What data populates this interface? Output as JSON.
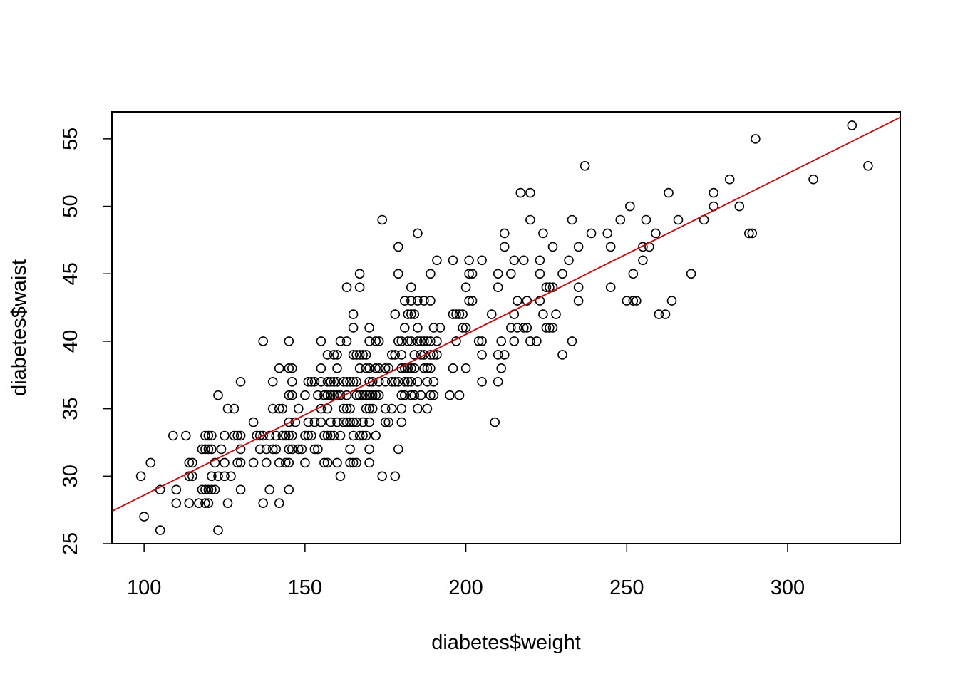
{
  "chart_data": {
    "type": "scatter",
    "title": "",
    "xlabel": "diabetes$weight",
    "ylabel": "diabetes$waist",
    "xlim": [
      90,
      335
    ],
    "ylim": [
      25,
      57
    ],
    "x_ticks": [
      100,
      150,
      200,
      250,
      300
    ],
    "y_ticks": [
      25,
      30,
      35,
      40,
      45,
      50,
      55
    ],
    "x_tick_labels": [
      "100",
      "150",
      "200",
      "250",
      "300"
    ],
    "y_tick_labels": [
      "25",
      "30",
      "35",
      "40",
      "45",
      "50",
      "55"
    ],
    "grid": false,
    "point_color": "#000000",
    "fit_line_color": "#e00000",
    "fit_line": {
      "x": [
        90,
        335
      ],
      "y": [
        27.4,
        56.6
      ]
    },
    "points": [
      [
        99,
        30
      ],
      [
        100,
        27
      ],
      [
        102,
        31
      ],
      [
        105,
        26
      ],
      [
        105,
        29
      ],
      [
        109,
        33
      ],
      [
        110,
        29
      ],
      [
        110,
        28
      ],
      [
        113,
        33
      ],
      [
        114,
        31
      ],
      [
        114,
        30
      ],
      [
        114,
        28
      ],
      [
        115,
        31
      ],
      [
        115,
        30
      ],
      [
        117,
        28
      ],
      [
        118,
        32
      ],
      [
        118,
        29
      ],
      [
        119,
        33
      ],
      [
        119,
        32
      ],
      [
        119,
        29
      ],
      [
        119,
        28
      ],
      [
        120,
        33
      ],
      [
        120,
        32
      ],
      [
        120,
        29
      ],
      [
        120,
        28
      ],
      [
        121,
        33
      ],
      [
        121,
        32
      ],
      [
        121,
        30
      ],
      [
        121,
        29
      ],
      [
        122,
        31
      ],
      [
        122,
        29
      ],
      [
        123,
        36
      ],
      [
        123,
        30
      ],
      [
        123,
        26
      ],
      [
        124,
        32
      ],
      [
        125,
        33
      ],
      [
        125,
        31
      ],
      [
        125,
        30
      ],
      [
        126,
        35
      ],
      [
        126,
        28
      ],
      [
        127,
        30
      ],
      [
        128,
        35
      ],
      [
        128,
        33
      ],
      [
        129,
        33
      ],
      [
        129,
        31
      ],
      [
        130,
        37
      ],
      [
        130,
        33
      ],
      [
        130,
        32
      ],
      [
        130,
        31
      ],
      [
        130,
        29
      ],
      [
        134,
        34
      ],
      [
        134,
        31
      ],
      [
        135,
        33
      ],
      [
        136,
        33
      ],
      [
        136,
        32
      ],
      [
        137,
        40
      ],
      [
        137,
        33
      ],
      [
        137,
        28
      ],
      [
        138,
        32
      ],
      [
        138,
        31
      ],
      [
        139,
        33
      ],
      [
        139,
        29
      ],
      [
        140,
        37
      ],
      [
        140,
        35
      ],
      [
        140,
        32
      ],
      [
        141,
        33
      ],
      [
        141,
        32
      ],
      [
        142,
        38
      ],
      [
        142,
        35
      ],
      [
        142,
        31
      ],
      [
        142,
        28
      ],
      [
        143,
        35
      ],
      [
        143,
        33
      ],
      [
        144,
        33
      ],
      [
        144,
        31
      ],
      [
        145,
        40
      ],
      [
        145,
        38
      ],
      [
        145,
        36
      ],
      [
        145,
        34
      ],
      [
        145,
        33
      ],
      [
        145,
        32
      ],
      [
        145,
        31
      ],
      [
        145,
        29
      ],
      [
        146,
        38
      ],
      [
        146,
        37
      ],
      [
        146,
        36
      ],
      [
        146,
        33
      ],
      [
        146,
        32
      ],
      [
        147,
        34
      ],
      [
        148,
        32
      ],
      [
        148,
        35
      ],
      [
        149,
        32
      ],
      [
        150,
        36
      ],
      [
        150,
        33
      ],
      [
        150,
        31
      ],
      [
        151,
        37
      ],
      [
        151,
        34
      ],
      [
        151,
        33
      ],
      [
        152,
        37
      ],
      [
        152,
        33
      ],
      [
        153,
        37
      ],
      [
        153,
        34
      ],
      [
        153,
        32
      ],
      [
        154,
        36
      ],
      [
        154,
        32
      ],
      [
        155,
        40
      ],
      [
        155,
        38
      ],
      [
        155,
        37
      ],
      [
        155,
        35
      ],
      [
        155,
        34
      ],
      [
        156,
        36
      ],
      [
        156,
        33
      ],
      [
        156,
        31
      ],
      [
        157,
        39
      ],
      [
        157,
        37
      ],
      [
        157,
        36
      ],
      [
        157,
        35
      ],
      [
        157,
        33
      ],
      [
        157,
        31
      ],
      [
        158,
        37
      ],
      [
        158,
        36
      ],
      [
        158,
        34
      ],
      [
        158,
        33
      ],
      [
        159,
        39
      ],
      [
        159,
        37
      ],
      [
        159,
        36
      ],
      [
        159,
        33
      ],
      [
        160,
        39
      ],
      [
        160,
        38
      ],
      [
        160,
        37
      ],
      [
        160,
        36
      ],
      [
        160,
        34
      ],
      [
        160,
        31
      ],
      [
        161,
        40
      ],
      [
        161,
        36
      ],
      [
        161,
        33
      ],
      [
        161,
        30
      ],
      [
        162,
        37
      ],
      [
        162,
        35
      ],
      [
        162,
        34
      ],
      [
        163,
        44
      ],
      [
        163,
        40
      ],
      [
        163,
        37
      ],
      [
        163,
        36
      ],
      [
        163,
        35
      ],
      [
        163,
        34
      ],
      [
        164,
        37
      ],
      [
        164,
        35
      ],
      [
        164,
        34
      ],
      [
        164,
        32
      ],
      [
        164,
        31
      ],
      [
        165,
        42
      ],
      [
        165,
        41
      ],
      [
        165,
        39
      ],
      [
        165,
        37
      ],
      [
        165,
        34
      ],
      [
        165,
        33
      ],
      [
        165,
        31
      ],
      [
        166,
        39
      ],
      [
        166,
        37
      ],
      [
        166,
        36
      ],
      [
        166,
        34
      ],
      [
        166,
        31
      ],
      [
        167,
        45
      ],
      [
        167,
        44
      ],
      [
        167,
        39
      ],
      [
        167,
        38
      ],
      [
        167,
        36
      ],
      [
        167,
        33
      ],
      [
        168,
        39
      ],
      [
        168,
        36
      ],
      [
        168,
        34
      ],
      [
        168,
        33
      ],
      [
        169,
        39
      ],
      [
        169,
        38
      ],
      [
        169,
        36
      ],
      [
        169,
        35
      ],
      [
        169,
        33
      ],
      [
        170,
        41
      ],
      [
        170,
        40
      ],
      [
        170,
        38
      ],
      [
        170,
        37
      ],
      [
        170,
        36
      ],
      [
        170,
        35
      ],
      [
        170,
        34
      ],
      [
        170,
        32
      ],
      [
        170,
        31
      ],
      [
        171,
        37
      ],
      [
        171,
        36
      ],
      [
        171,
        35
      ],
      [
        172,
        40
      ],
      [
        172,
        38
      ],
      [
        172,
        36
      ],
      [
        172,
        33
      ],
      [
        173,
        40
      ],
      [
        173,
        38
      ],
      [
        173,
        37
      ],
      [
        173,
        36
      ],
      [
        174,
        49
      ],
      [
        174,
        30
      ],
      [
        175,
        38
      ],
      [
        175,
        37
      ],
      [
        175,
        35
      ],
      [
        175,
        34
      ],
      [
        176,
        38
      ],
      [
        176,
        34
      ],
      [
        177,
        39
      ],
      [
        177,
        37
      ],
      [
        177,
        35
      ],
      [
        178,
        42
      ],
      [
        178,
        39
      ],
      [
        178,
        37
      ],
      [
        178,
        30
      ],
      [
        179,
        47
      ],
      [
        179,
        45
      ],
      [
        179,
        40
      ],
      [
        179,
        37
      ],
      [
        179,
        32
      ],
      [
        180,
        40
      ],
      [
        180,
        39
      ],
      [
        180,
        38
      ],
      [
        180,
        36
      ],
      [
        180,
        35
      ],
      [
        180,
        34
      ],
      [
        181,
        43
      ],
      [
        181,
        41
      ],
      [
        181,
        38
      ],
      [
        181,
        37
      ],
      [
        181,
        36
      ],
      [
        182,
        42
      ],
      [
        182,
        40
      ],
      [
        182,
        38
      ],
      [
        182,
        37
      ],
      [
        183,
        44
      ],
      [
        183,
        43
      ],
      [
        183,
        42
      ],
      [
        183,
        40
      ],
      [
        183,
        38
      ],
      [
        183,
        37
      ],
      [
        183,
        36
      ],
      [
        184,
        42
      ],
      [
        184,
        39
      ],
      [
        184,
        38
      ],
      [
        184,
        36
      ],
      [
        185,
        48
      ],
      [
        185,
        43
      ],
      [
        185,
        41
      ],
      [
        185,
        40
      ],
      [
        185,
        37
      ],
      [
        185,
        35
      ],
      [
        186,
        40
      ],
      [
        186,
        39
      ],
      [
        186,
        36
      ],
      [
        187,
        43
      ],
      [
        187,
        40
      ],
      [
        187,
        39
      ],
      [
        187,
        38
      ],
      [
        188,
        40
      ],
      [
        188,
        38
      ],
      [
        188,
        37
      ],
      [
        188,
        35
      ],
      [
        189,
        45
      ],
      [
        189,
        43
      ],
      [
        189,
        40
      ],
      [
        189,
        39
      ],
      [
        189,
        38
      ],
      [
        189,
        36
      ],
      [
        190,
        41
      ],
      [
        190,
        39
      ],
      [
        190,
        37
      ],
      [
        190,
        36
      ],
      [
        191,
        46
      ],
      [
        191,
        40
      ],
      [
        191,
        39
      ],
      [
        192,
        41
      ],
      [
        195,
        36
      ],
      [
        196,
        46
      ],
      [
        196,
        42
      ],
      [
        196,
        38
      ],
      [
        197,
        42
      ],
      [
        197,
        40
      ],
      [
        198,
        42
      ],
      [
        198,
        36
      ],
      [
        199,
        42
      ],
      [
        199,
        41
      ],
      [
        200,
        44
      ],
      [
        200,
        41
      ],
      [
        200,
        38
      ],
      [
        201,
        46
      ],
      [
        201,
        45
      ],
      [
        201,
        43
      ],
      [
        202,
        45
      ],
      [
        202,
        43
      ],
      [
        204,
        40
      ],
      [
        205,
        46
      ],
      [
        205,
        40
      ],
      [
        205,
        39
      ],
      [
        205,
        37
      ],
      [
        208,
        42
      ],
      [
        209,
        34
      ],
      [
        210,
        45
      ],
      [
        210,
        44
      ],
      [
        210,
        39
      ],
      [
        210,
        37
      ],
      [
        211,
        40
      ],
      [
        211,
        38
      ],
      [
        212,
        48
      ],
      [
        212,
        47
      ],
      [
        212,
        39
      ],
      [
        214,
        45
      ],
      [
        214,
        41
      ],
      [
        215,
        46
      ],
      [
        215,
        42
      ],
      [
        215,
        40
      ],
      [
        216,
        43
      ],
      [
        216,
        41
      ],
      [
        217,
        51
      ],
      [
        218,
        46
      ],
      [
        218,
        41
      ],
      [
        219,
        43
      ],
      [
        219,
        41
      ],
      [
        220,
        51
      ],
      [
        220,
        49
      ],
      [
        220,
        40
      ],
      [
        222,
        40
      ],
      [
        223,
        43
      ],
      [
        223,
        46
      ],
      [
        223,
        45
      ],
      [
        224,
        48
      ],
      [
        224,
        42
      ],
      [
        225,
        44
      ],
      [
        225,
        41
      ],
      [
        226,
        44
      ],
      [
        226,
        41
      ],
      [
        227,
        47
      ],
      [
        227,
        44
      ],
      [
        227,
        41
      ],
      [
        228,
        42
      ],
      [
        230,
        45
      ],
      [
        230,
        39
      ],
      [
        232,
        46
      ],
      [
        233,
        49
      ],
      [
        233,
        40
      ],
      [
        235,
        47
      ],
      [
        235,
        44
      ],
      [
        235,
        43
      ],
      [
        237,
        53
      ],
      [
        239,
        48
      ],
      [
        244,
        48
      ],
      [
        245,
        47
      ],
      [
        245,
        44
      ],
      [
        248,
        49
      ],
      [
        250,
        43
      ],
      [
        251,
        50
      ],
      [
        252,
        45
      ],
      [
        252,
        43
      ],
      [
        253,
        43
      ],
      [
        255,
        47
      ],
      [
        255,
        46
      ],
      [
        256,
        49
      ],
      [
        257,
        47
      ],
      [
        259,
        48
      ],
      [
        260,
        42
      ],
      [
        262,
        42
      ],
      [
        263,
        51
      ],
      [
        264,
        43
      ],
      [
        266,
        49
      ],
      [
        270,
        45
      ],
      [
        274,
        49
      ],
      [
        277,
        51
      ],
      [
        277,
        50
      ],
      [
        282,
        52
      ],
      [
        285,
        50
      ],
      [
        288,
        48
      ],
      [
        289,
        48
      ],
      [
        290,
        55
      ],
      [
        308,
        52
      ],
      [
        320,
        56
      ],
      [
        325,
        53
      ]
    ]
  }
}
